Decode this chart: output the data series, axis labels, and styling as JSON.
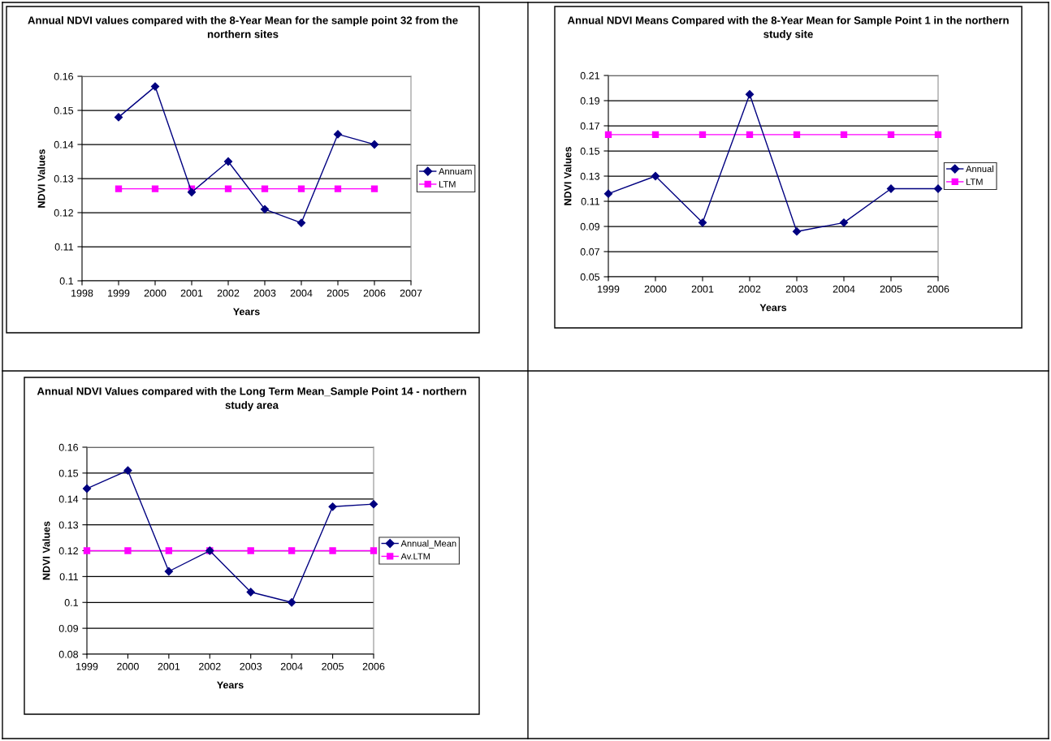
{
  "chart_data": [
    {
      "type": "line",
      "title": "Annual NDVI values compared with the 8-Year Mean for the sample point 32 from the northern sites",
      "xlabel": "Years",
      "ylabel": "NDVI Values",
      "x": [
        1999,
        2000,
        2001,
        2002,
        2003,
        2004,
        2005,
        2006
      ],
      "series": [
        {
          "name": "Annuam",
          "color": "#000080",
          "marker": "diamond",
          "values": [
            0.148,
            0.157,
            0.126,
            0.135,
            0.121,
            0.117,
            0.143,
            0.14
          ]
        },
        {
          "name": "LTM",
          "color": "#ff00ff",
          "marker": "square",
          "values": [
            0.127,
            0.127,
            0.127,
            0.127,
            0.127,
            0.127,
            0.127,
            0.127
          ]
        }
      ],
      "xlim": [
        1998,
        2007
      ],
      "xticks": [
        1998,
        1999,
        2000,
        2001,
        2002,
        2003,
        2004,
        2005,
        2006,
        2007
      ],
      "ylim": [
        0.1,
        0.16
      ],
      "yticks": [
        0.1,
        0.11,
        0.12,
        0.13,
        0.14,
        0.15,
        0.16
      ],
      "grid": "y",
      "legend": "right"
    },
    {
      "type": "line",
      "title": "Annual NDVI Means Compared with the 8-Year Mean for Sample Point 1 in the northern study site",
      "xlabel": "Years",
      "ylabel": "NDVI Values",
      "x": [
        1999,
        2000,
        2001,
        2002,
        2003,
        2004,
        2005,
        2006
      ],
      "series": [
        {
          "name": "Annual",
          "color": "#000080",
          "marker": "diamond",
          "values": [
            0.116,
            0.13,
            0.093,
            0.195,
            0.086,
            0.093,
            0.12,
            0.12
          ]
        },
        {
          "name": "LTM",
          "color": "#ff00ff",
          "marker": "square",
          "values": [
            0.163,
            0.163,
            0.163,
            0.163,
            0.163,
            0.163,
            0.163,
            0.163
          ]
        }
      ],
      "xlim": [
        1999,
        2006
      ],
      "xticks": [
        1999,
        2000,
        2001,
        2002,
        2003,
        2004,
        2005,
        2006
      ],
      "ylim": [
        0.05,
        0.21
      ],
      "yticks": [
        0.05,
        0.07,
        0.09,
        0.11,
        0.13,
        0.15,
        0.17,
        0.19,
        0.21
      ],
      "grid": "y",
      "legend": "right"
    },
    {
      "type": "line",
      "title": "Annual NDVI Values compared with the Long Term Mean_Sample Point 14 - northern study area",
      "xlabel": "Years",
      "ylabel": "NDVI Values",
      "x": [
        1999,
        2000,
        2001,
        2002,
        2003,
        2004,
        2005,
        2006
      ],
      "series": [
        {
          "name": "Annual_Mean",
          "color": "#000080",
          "marker": "diamond",
          "values": [
            0.144,
            0.151,
            0.112,
            0.12,
            0.104,
            0.1,
            0.137,
            0.138
          ]
        },
        {
          "name": "Av.LTM",
          "color": "#ff00ff",
          "marker": "square",
          "values": [
            0.12,
            0.12,
            0.12,
            0.12,
            0.12,
            0.12,
            0.12,
            0.12
          ]
        }
      ],
      "xlim": [
        1999,
        2006
      ],
      "xticks": [
        1999,
        2000,
        2001,
        2002,
        2003,
        2004,
        2005,
        2006
      ],
      "ylim": [
        0.08,
        0.16
      ],
      "yticks": [
        0.08,
        0.09,
        0.1,
        0.11,
        0.12,
        0.13,
        0.14,
        0.15,
        0.16
      ],
      "grid": "y",
      "legend": "right"
    }
  ]
}
